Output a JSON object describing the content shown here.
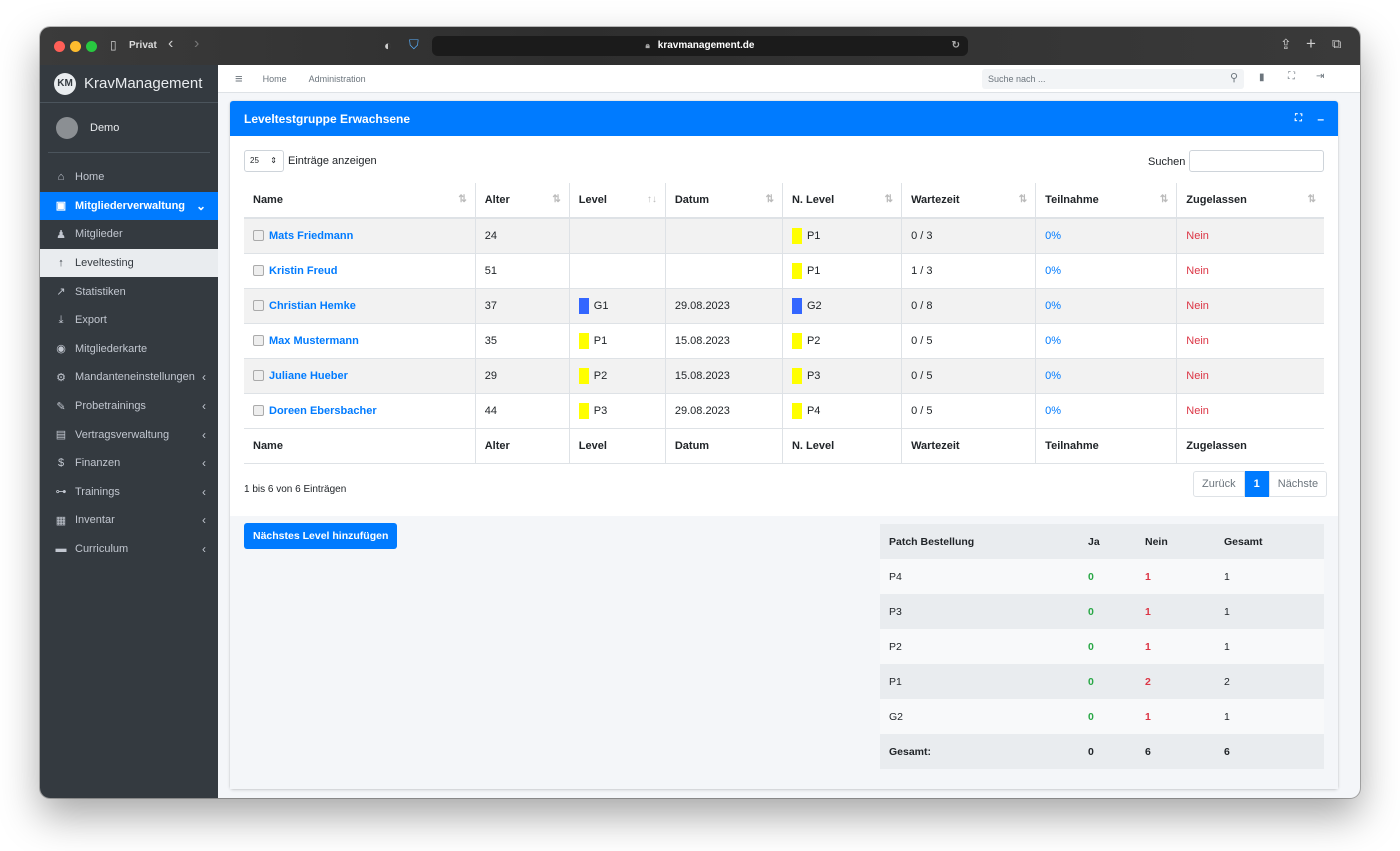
{
  "browser": {
    "profile": "Privat",
    "url": "kravmanagement.de"
  },
  "brand": {
    "name": "KravManagement",
    "logo_text": "KM"
  },
  "user": {
    "name": "Demo"
  },
  "sidebar": {
    "items": [
      {
        "label": "Home",
        "icon": "home-icon",
        "glyph": "⌂",
        "state": "normal",
        "chevron": ""
      },
      {
        "label": "Mitgliederverwaltung",
        "icon": "member-card-icon",
        "glyph": "▣",
        "state": "active",
        "chevron": "⌄"
      },
      {
        "label": "Mitglieder",
        "icon": "users-icon",
        "glyph": "♟",
        "state": "normal",
        "chevron": ""
      },
      {
        "label": "Leveltesting",
        "icon": "arrow-up-icon",
        "glyph": "↑",
        "state": "sub-active",
        "chevron": ""
      },
      {
        "label": "Statistiken",
        "icon": "chart-line-icon",
        "glyph": "↗",
        "state": "normal",
        "chevron": ""
      },
      {
        "label": "Export",
        "icon": "download-icon",
        "glyph": "⤓",
        "state": "normal",
        "chevron": ""
      },
      {
        "label": "Mitgliederkarte",
        "icon": "id-card-icon",
        "glyph": "◉",
        "state": "normal",
        "chevron": ""
      },
      {
        "label": "Mandanteneinstellungen",
        "icon": "cogs-icon",
        "glyph": "⚙",
        "state": "normal",
        "chevron": "‹"
      },
      {
        "label": "Probetrainings",
        "icon": "pen-icon",
        "glyph": "✎",
        "state": "normal",
        "chevron": "‹"
      },
      {
        "label": "Vertragsverwaltung",
        "icon": "contract-icon",
        "glyph": "▤",
        "state": "normal",
        "chevron": "‹"
      },
      {
        "label": "Finanzen",
        "icon": "money-icon",
        "glyph": "$",
        "state": "normal",
        "chevron": "‹"
      },
      {
        "label": "Trainings",
        "icon": "dumbbell-icon",
        "glyph": "⊶",
        "state": "normal",
        "chevron": "‹"
      },
      {
        "label": "Inventar",
        "icon": "inventory-icon",
        "glyph": "▦",
        "state": "normal",
        "chevron": "‹"
      },
      {
        "label": "Curriculum",
        "icon": "book-icon",
        "glyph": "▬",
        "state": "normal",
        "chevron": "‹"
      }
    ]
  },
  "topnav": {
    "home": "Home",
    "admin": "Administration",
    "search_placeholder": "Suche nach ..."
  },
  "card": {
    "title": "Leveltestgruppe Erwachsene"
  },
  "table_controls": {
    "page_size": "25",
    "entries_label": "Einträge anzeigen",
    "search_label": "Suchen"
  },
  "table": {
    "headers": [
      "Name",
      "Alter",
      "Level",
      "Datum",
      "N. Level",
      "Wartezeit",
      "Teilnahme",
      "Zugelassen"
    ],
    "rows": [
      {
        "name": "Mats Friedmann",
        "age": "24",
        "level": "",
        "level_color": "",
        "date": "",
        "next_level": "P1",
        "next_color": "#ffff00",
        "wait": "0 / 3",
        "attendance": "0%",
        "allowed": "Nein"
      },
      {
        "name": "Kristin Freud",
        "age": "51",
        "level": "",
        "level_color": "",
        "date": "",
        "next_level": "P1",
        "next_color": "#ffff00",
        "wait": "1 / 3",
        "attendance": "0%",
        "allowed": "Nein"
      },
      {
        "name": "Christian Hemke",
        "age": "37",
        "level": "G1",
        "level_color": "#3366ff",
        "date": "29.08.2023",
        "next_level": "G2",
        "next_color": "#3366ff",
        "wait": "0 / 8",
        "attendance": "0%",
        "allowed": "Nein"
      },
      {
        "name": "Max Mustermann",
        "age": "35",
        "level": "P1",
        "level_color": "#ffff00",
        "date": "15.08.2023",
        "next_level": "P2",
        "next_color": "#ffff00",
        "wait": "0 / 5",
        "attendance": "0%",
        "allowed": "Nein"
      },
      {
        "name": "Juliane Hueber",
        "age": "29",
        "level": "P2",
        "level_color": "#ffff00",
        "date": "15.08.2023",
        "next_level": "P3",
        "next_color": "#ffff00",
        "wait": "0 / 5",
        "attendance": "0%",
        "allowed": "Nein"
      },
      {
        "name": "Doreen Ebersbacher",
        "age": "44",
        "level": "P3",
        "level_color": "#ffff00",
        "date": "29.08.2023",
        "next_level": "P4",
        "next_color": "#ffff00",
        "wait": "0 / 5",
        "attendance": "0%",
        "allowed": "Nein"
      }
    ]
  },
  "footer": {
    "info": "1 bis 6 von 6 Einträgen",
    "prev": "Zurück",
    "page": "1",
    "next": "Nächste"
  },
  "add_button": "Nächstes Level hinzufügen",
  "patch": {
    "headers": [
      "Patch Bestellung",
      "Ja",
      "Nein",
      "Gesamt"
    ],
    "rows": [
      {
        "patch": "P4",
        "ja": "0",
        "nein": "1",
        "total": "1"
      },
      {
        "patch": "P3",
        "ja": "0",
        "nein": "1",
        "total": "1"
      },
      {
        "patch": "P2",
        "ja": "0",
        "nein": "1",
        "total": "1"
      },
      {
        "patch": "P1",
        "ja": "0",
        "nein": "2",
        "total": "2"
      },
      {
        "patch": "G2",
        "ja": "0",
        "nein": "1",
        "total": "1"
      }
    ],
    "total": {
      "label": "Gesamt:",
      "ja": "0",
      "nein": "6",
      "total": "6"
    }
  },
  "colors": {
    "accent": "#007bff",
    "sidebar": "#343a40",
    "danger": "#dc3545",
    "success": "#28a745"
  }
}
